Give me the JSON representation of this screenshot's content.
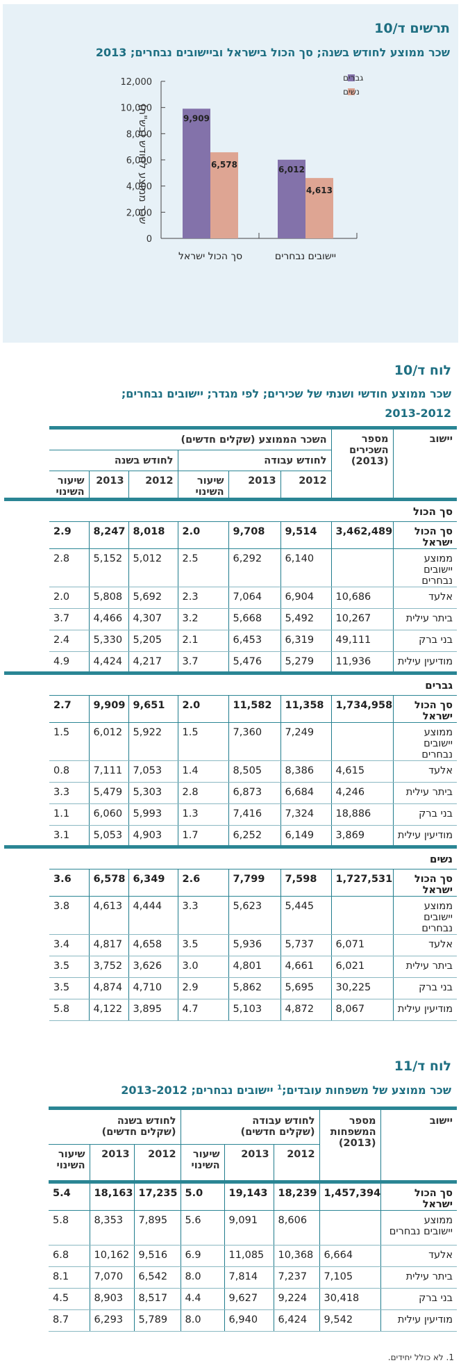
{
  "chart": {
    "title_code": "תרשים ד/10",
    "subtitle": "שכר ממוצע לחודש בשנה; סך הכול בישראל וביישובים נבחרים; 2013"
  },
  "chart_data": {
    "type": "bar",
    "categories": [
      "סך הכול ישראל",
      "יישובים נבחרים"
    ],
    "series": [
      {
        "name": "גברים",
        "values": [
          9909,
          6012
        ],
        "color": "#8372aa"
      },
      {
        "name": "נשים",
        "values": [
          6578,
          4613
        ],
        "color": "#dea593"
      }
    ],
    "ylabel": "שכר ממוצע לחודש (בש\"ח)",
    "ylim": [
      0,
      12000
    ],
    "yticks": [
      "0",
      "2,000",
      "4,000",
      "6,000",
      "8,000",
      "10,000",
      "12,000"
    ],
    "data_labels": [
      [
        "9,909",
        "6,012"
      ],
      [
        "6,578",
        "4,613"
      ]
    ],
    "legend_position": "top-right",
    "grid": false
  },
  "table10": {
    "code": "לוח ד/10",
    "title_line1": "שכר ממוצע חודשי ושנתי של שכירים; לפי מגדר; יישובים נבחרים;",
    "title_line2": "2013-2012",
    "headers": {
      "settlement": "יישוב",
      "employees_line1": "מספר",
      "employees_line2": "השכירים",
      "employees_line3": "(2013)",
      "avg_wage": "השכר הממוצע (שקלים חדשים)",
      "per_work_month": "לחודש עבודה",
      "per_month_year": "לחודש בשנה",
      "y2012": "2012",
      "y2013": "2013",
      "change_line1": "שיעור",
      "change_line2": "השינוי"
    },
    "groups": [
      {
        "label": "סך הכול",
        "rows": [
          {
            "name": [
              "סך הכול ישראל"
            ],
            "emp": "3,462,489",
            "w12": "9,514",
            "w13": "9,708",
            "wc": "2.0",
            "m12": "8,018",
            "m13": "8,247",
            "mc": "2.9",
            "total": true
          },
          {
            "name": [
              "ממוצע יישובים",
              "נבחרים"
            ],
            "emp": "",
            "w12": "6,140",
            "w13": "6,292",
            "wc": "2.5",
            "m12": "5,012",
            "m13": "5,152",
            "mc": "2.8"
          },
          {
            "name": [
              "אלעד"
            ],
            "emp": "10,686",
            "w12": "6,904",
            "w13": "7,064",
            "wc": "2.3",
            "m12": "5,692",
            "m13": "5,808",
            "mc": "2.0"
          },
          {
            "name": [
              "ביתר עילית"
            ],
            "emp": "10,267",
            "w12": "5,492",
            "w13": "5,668",
            "wc": "3.2",
            "m12": "4,307",
            "m13": "4,466",
            "mc": "3.7"
          },
          {
            "name": [
              "בני ברק"
            ],
            "emp": "49,111",
            "w12": "6,319",
            "w13": "6,453",
            "wc": "2.1",
            "m12": "5,205",
            "m13": "5,330",
            "mc": "2.4"
          },
          {
            "name": [
              "מודיעין עילית"
            ],
            "emp": "11,936",
            "w12": "5,279",
            "w13": "5,476",
            "wc": "3.7",
            "m12": "4,217",
            "m13": "4,424",
            "mc": "4.9"
          }
        ]
      },
      {
        "label": "גברים",
        "rows": [
          {
            "name": [
              "סך הכול ישראל"
            ],
            "emp": "1,734,958",
            "w12": "11,358",
            "w13": "11,582",
            "wc": "2.0",
            "m12": "9,651",
            "m13": "9,909",
            "mc": "2.7",
            "total": true
          },
          {
            "name": [
              "ממוצע יישובים",
              "נבחרים"
            ],
            "emp": "",
            "w12": "7,249",
            "w13": "7,360",
            "wc": "1.5",
            "m12": "5,922",
            "m13": "6,012",
            "mc": "1.5"
          },
          {
            "name": [
              "אלעד"
            ],
            "emp": "4,615",
            "w12": "8,386",
            "w13": "8,505",
            "wc": "1.4",
            "m12": "7,053",
            "m13": "7,111",
            "mc": "0.8"
          },
          {
            "name": [
              "ביתר עילית"
            ],
            "emp": "4,246",
            "w12": "6,684",
            "w13": "6,873",
            "wc": "2.8",
            "m12": "5,303",
            "m13": "5,479",
            "mc": "3.3"
          },
          {
            "name": [
              "בני ברק"
            ],
            "emp": "18,886",
            "w12": "7,324",
            "w13": "7,416",
            "wc": "1.3",
            "m12": "5,993",
            "m13": "6,060",
            "mc": "1.1"
          },
          {
            "name": [
              "מודיעין עילית"
            ],
            "emp": "3,869",
            "w12": "6,149",
            "w13": "6,252",
            "wc": "1.7",
            "m12": "4,903",
            "m13": "5,053",
            "mc": "3.1"
          }
        ]
      },
      {
        "label": "נשים",
        "rows": [
          {
            "name": [
              "סך הכול ישראל"
            ],
            "emp": "1,727,531",
            "w12": "7,598",
            "w13": "7,799",
            "wc": "2.6",
            "m12": "6,349",
            "m13": "6,578",
            "mc": "3.6",
            "total": true
          },
          {
            "name": [
              "ממוצע יישובים",
              "נבחרים"
            ],
            "emp": "",
            "w12": "5,445",
            "w13": "5,623",
            "wc": "3.3",
            "m12": "4,444",
            "m13": "4,613",
            "mc": "3.8"
          },
          {
            "name": [
              "אלעד"
            ],
            "emp": "6,071",
            "w12": "5,737",
            "w13": "5,936",
            "wc": "3.5",
            "m12": "4,658",
            "m13": "4,817",
            "mc": "3.4"
          },
          {
            "name": [
              "ביתר עילית"
            ],
            "emp": "6,021",
            "w12": "4,661",
            "w13": "4,801",
            "wc": "3.0",
            "m12": "3,626",
            "m13": "3,752",
            "mc": "3.5"
          },
          {
            "name": [
              "בני ברק"
            ],
            "emp": "30,225",
            "w12": "5,695",
            "w13": "5,862",
            "wc": "2.9",
            "m12": "4,710",
            "m13": "4,874",
            "mc": "3.5"
          },
          {
            "name": [
              "מודיעין עילית"
            ],
            "emp": "8,067",
            "w12": "4,872",
            "w13": "5,103",
            "wc": "4.7",
            "m12": "3,895",
            "m13": "4,122",
            "mc": "5.8"
          }
        ]
      }
    ]
  },
  "table11": {
    "code": "לוח ד/11",
    "title_a": "שכר ממוצע של משפחות עובדים;",
    "title_sup": "1",
    "title_b": " יישובים נבחרים; 2013-2012",
    "headers": {
      "settlement": "יישוב",
      "families_line1": "מספר",
      "families_line2": "המשפחות",
      "families_line3": "(2013)",
      "work_line1": "לחודש עבודה",
      "work_line2": "(שקלים חדשים)",
      "month_line1": "לחודש בשנה",
      "month_line2": "(שקלים חדשים)",
      "y2012": "2012",
      "y2013": "2013",
      "change_line1": "שיעור",
      "change_line2": "השינוי"
    },
    "rows": [
      {
        "name": [
          "סך הכול ישראל"
        ],
        "emp": "1,457,394",
        "w12": "18,239",
        "w13": "19,143",
        "wc": "5.0",
        "m12": "17,235",
        "m13": "18,163",
        "mc": "5.4",
        "total": true
      },
      {
        "name": [
          "ממוצע",
          "יישובים נבחרים"
        ],
        "emp": "",
        "w12": "8,606",
        "w13": "9,091",
        "wc": "5.6",
        "m12": "7,895",
        "m13": "8,353",
        "mc": "5.8"
      },
      {
        "name": [
          "אלעד"
        ],
        "emp": "6,664",
        "w12": "10,368",
        "w13": "11,085",
        "wc": "6.9",
        "m12": "9,516",
        "m13": "10,162",
        "mc": "6.8"
      },
      {
        "name": [
          "ביתר עילית"
        ],
        "emp": "7,105",
        "w12": "7,237",
        "w13": "7,814",
        "wc": "8.0",
        "m12": "6,542",
        "m13": "7,070",
        "mc": "8.1"
      },
      {
        "name": [
          "בני ברק"
        ],
        "emp": "30,418",
        "w12": "9,224",
        "w13": "9,627",
        "wc": "4.4",
        "m12": "8,517",
        "m13": "8,903",
        "mc": "4.5"
      },
      {
        "name": [
          "מודיעין עילית"
        ],
        "emp": "9,542",
        "w12": "6,424",
        "w13": "6,940",
        "wc": "8.0",
        "m12": "5,789",
        "m13": "6,293",
        "mc": "8.7"
      }
    ],
    "footnote": "1. לא כולל יחידים."
  }
}
